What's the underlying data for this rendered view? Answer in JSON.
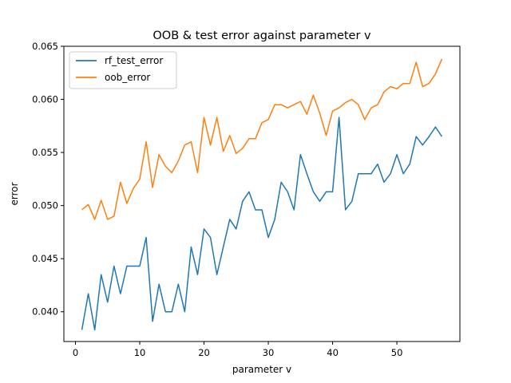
{
  "chart_data": {
    "type": "line",
    "title": "OOB & test error against parameter v",
    "xlabel": "parameter v",
    "ylabel": "error",
    "xlim": [
      -1.8,
      59.8
    ],
    "ylim": [
      0.0372,
      0.065
    ],
    "xticks": [
      0,
      10,
      20,
      30,
      40,
      50
    ],
    "yticks": [
      0.04,
      0.045,
      0.05,
      0.055,
      0.06,
      0.065
    ],
    "ytick_labels": [
      "0.040",
      "0.045",
      "0.050",
      "0.055",
      "0.060",
      "0.065"
    ],
    "grid": false,
    "legend": "top-left",
    "x": [
      1,
      2,
      3,
      4,
      5,
      6,
      7,
      8,
      9,
      10,
      11,
      12,
      13,
      14,
      15,
      16,
      17,
      18,
      19,
      20,
      21,
      22,
      23,
      24,
      25,
      26,
      27,
      28,
      29,
      30,
      31,
      32,
      33,
      34,
      35,
      36,
      37,
      38,
      39,
      40,
      41,
      42,
      43,
      44,
      45,
      46,
      47,
      48,
      49,
      50,
      51,
      52,
      53,
      54,
      55,
      56,
      57
    ],
    "series": [
      {
        "name": "rf_test_error",
        "color": "#1f77b4",
        "values": [
          0.0383,
          0.0417,
          0.0383,
          0.0435,
          0.0409,
          0.0443,
          0.0417,
          0.0443,
          0.0443,
          0.0443,
          0.047,
          0.0391,
          0.0426,
          0.04,
          0.04,
          0.0426,
          0.04,
          0.0461,
          0.0435,
          0.0478,
          0.047,
          0.0435,
          0.0461,
          0.0487,
          0.0478,
          0.0504,
          0.0513,
          0.0496,
          0.0496,
          0.047,
          0.0487,
          0.0522,
          0.0513,
          0.0496,
          0.0548,
          0.053,
          0.0513,
          0.0504,
          0.0513,
          0.0513,
          0.0583,
          0.0496,
          0.0504,
          0.053,
          0.053,
          0.053,
          0.0539,
          0.0522,
          0.053,
          0.0548,
          0.053,
          0.0539,
          0.0565,
          0.0557,
          0.0565,
          0.0574,
          0.0565
        ]
      },
      {
        "name": "oob_error",
        "color": "#ff7f0e",
        "values": [
          0.0496,
          0.0501,
          0.0487,
          0.0505,
          0.0487,
          0.049,
          0.0522,
          0.0502,
          0.0516,
          0.0525,
          0.056,
          0.0517,
          0.0548,
          0.0537,
          0.0531,
          0.0542,
          0.0557,
          0.056,
          0.0531,
          0.0583,
          0.0557,
          0.0583,
          0.0551,
          0.0566,
          0.0549,
          0.0554,
          0.0563,
          0.0563,
          0.0578,
          0.0581,
          0.0595,
          0.0595,
          0.0592,
          0.0595,
          0.0598,
          0.0586,
          0.0604,
          0.0587,
          0.0566,
          0.0589,
          0.0592,
          0.0597,
          0.06,
          0.0595,
          0.0581,
          0.0592,
          0.0595,
          0.0607,
          0.0612,
          0.061,
          0.0615,
          0.0615,
          0.0635,
          0.0612,
          0.0615,
          0.0624,
          0.0638
        ]
      }
    ]
  }
}
